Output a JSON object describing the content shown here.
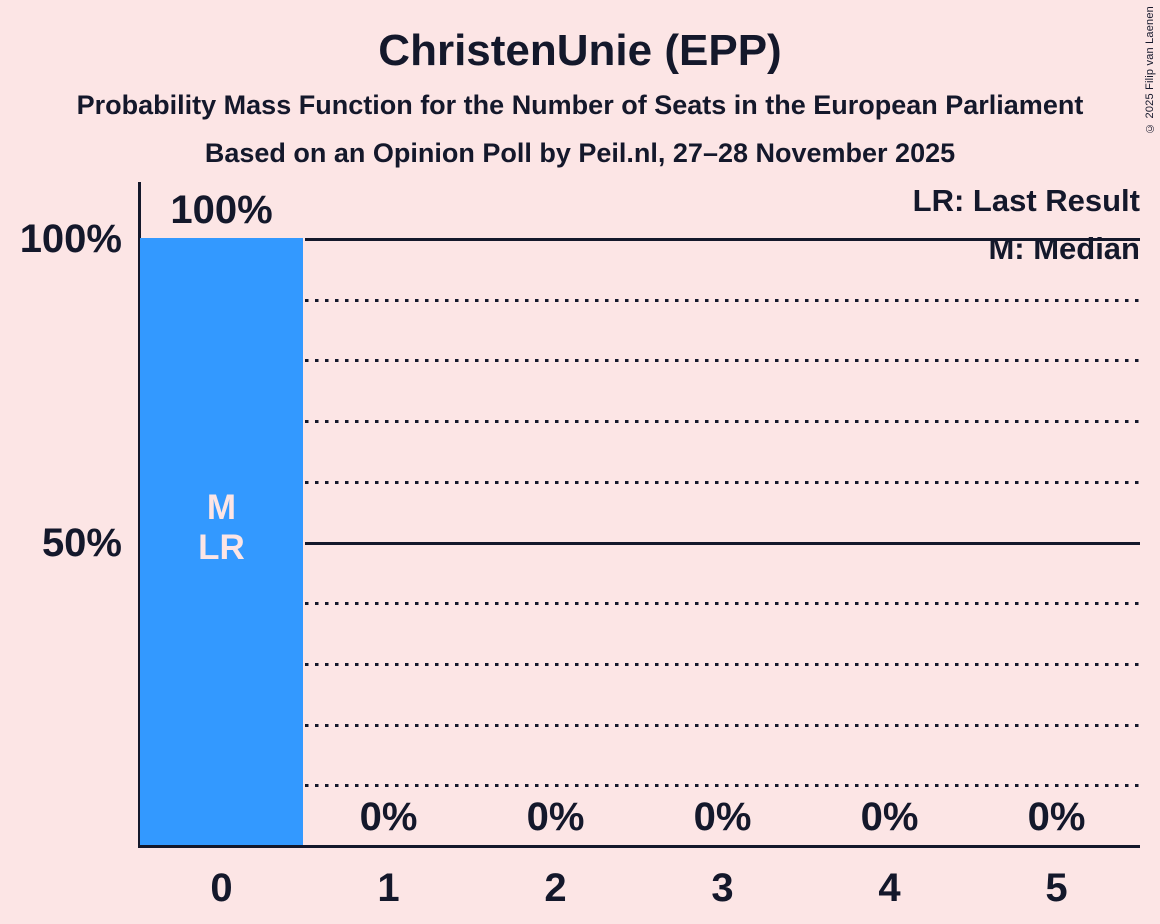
{
  "header": {
    "title": "ChristenUnie (EPP)",
    "subtitle": "Probability Mass Function for the Number of Seats in the European Parliament",
    "poll_line": "Based on an Opinion Poll by Peil.nl, 27–28 November 2025"
  },
  "copyright": "© 2025 Filip van Laenen",
  "legend": {
    "last_result": "LR: Last Result",
    "median": "M: Median"
  },
  "colors": {
    "background": "#FCE5E5",
    "bar": "#3399FF",
    "ink": "#14182B"
  },
  "chart_data": {
    "type": "bar",
    "title": "ChristenUnie (EPP)",
    "categories": [
      "0",
      "1",
      "2",
      "3",
      "4",
      "5"
    ],
    "values": [
      100,
      0,
      0,
      0,
      0,
      0
    ],
    "value_labels": [
      "100%",
      "0%",
      "0%",
      "0%",
      "0%",
      "0%"
    ],
    "bar_annotations": [
      [
        "M",
        "LR"
      ],
      [],
      [],
      [],
      [],
      []
    ],
    "median_seats": "0",
    "last_result_seats": "0",
    "y_axis": {
      "range": [
        0,
        100
      ],
      "ticks": [
        {
          "value": 100,
          "label": "100%"
        },
        {
          "value": 50,
          "label": "50%"
        }
      ]
    },
    "gridlines": {
      "solid": [
        100,
        50
      ],
      "dotted": [
        90,
        80,
        70,
        60,
        40,
        30,
        20,
        10
      ]
    },
    "legend_position": "top-right",
    "grid": "on"
  }
}
